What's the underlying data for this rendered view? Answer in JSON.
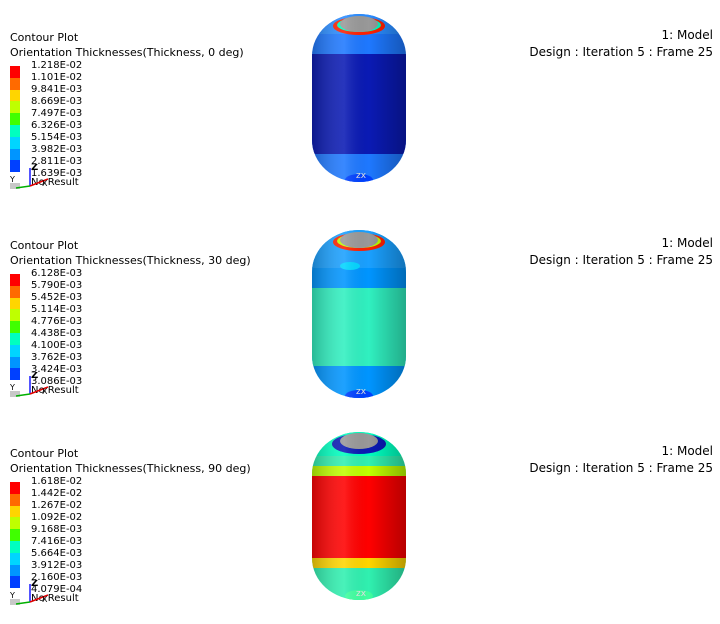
{
  "plots": [
    {
      "legend": {
        "title": "Contour Plot",
        "subtitle": "Orientation Thicknesses(Thickness, 0 deg)",
        "values": [
          "1.218E-02",
          "1.101E-02",
          "9.841E-03",
          "8.669E-03",
          "7.497E-03",
          "6.326E-03",
          "5.154E-03",
          "3.982E-03",
          "2.811E-03",
          "1.639E-03"
        ],
        "no_result": "No Result"
      },
      "model": {
        "name": "1: Model",
        "info": "Design : Iteration 5 : Frame 25"
      }
    },
    {
      "legend": {
        "title": "Contour Plot",
        "subtitle": "Orientation Thicknesses(Thickness, 30 deg)",
        "values": [
          "6.128E-03",
          "5.790E-03",
          "5.452E-03",
          "5.114E-03",
          "4.776E-03",
          "4.438E-03",
          "4.100E-03",
          "3.762E-03",
          "3.424E-03",
          "3.086E-03"
        ],
        "no_result": "No Result"
      },
      "model": {
        "name": "1: Model",
        "info": "Design : Iteration 5 : Frame 25"
      }
    },
    {
      "legend": {
        "title": "Contour Plot",
        "subtitle": "Orientation Thicknesses(Thickness, 90 deg)",
        "values": [
          "1.618E-02",
          "1.442E-02",
          "1.267E-02",
          "1.092E-02",
          "9.168E-03",
          "7.416E-03",
          "5.664E-03",
          "3.912E-03",
          "2.160E-03",
          "4.079E-04"
        ],
        "no_result": "No Result"
      },
      "model": {
        "name": "1: Model",
        "info": "Design : Iteration 5 : Frame 25"
      }
    }
  ],
  "colors": {
    "scale": [
      "#ff0000",
      "#ff6a00",
      "#ffd500",
      "#bfff00",
      "#40ff00",
      "#00ffbf",
      "#00d5ff",
      "#0095ff",
      "#0040ff",
      "#0000c0"
    ],
    "no_result": "#c8c8c8",
    "cap": "#999999"
  },
  "icons": {
    "triad": "xyz-axis-triad-icon",
    "view_triad": "view-axis-triad-icon"
  }
}
